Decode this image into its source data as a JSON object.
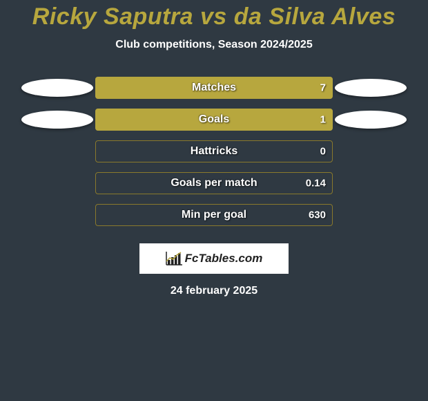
{
  "title": "Ricky Saputra vs da Silva Alves",
  "subtitle": "Club competitions, Season 2024/2025",
  "rows": [
    {
      "label": "Matches",
      "value": "7",
      "fill_pct": 100,
      "left_ellipse": true,
      "right_ellipse": true
    },
    {
      "label": "Goals",
      "value": "1",
      "fill_pct": 100,
      "left_ellipse": true,
      "right_ellipse": true
    },
    {
      "label": "Hattricks",
      "value": "0",
      "fill_pct": 0,
      "left_ellipse": false,
      "right_ellipse": false
    },
    {
      "label": "Goals per match",
      "value": "0.14",
      "fill_pct": 0,
      "left_ellipse": false,
      "right_ellipse": false
    },
    {
      "label": "Min per goal",
      "value": "630",
      "fill_pct": 0,
      "left_ellipse": false,
      "right_ellipse": false
    }
  ],
  "branding": {
    "text": "FcTables.com"
  },
  "date": "24 february 2025",
  "colors": {
    "background": "#2f3942",
    "title": "#b7a73e",
    "bar_fill": "#b7a73e",
    "bar_border": "#8a7a2c",
    "text": "#ffffff",
    "ellipse": "#ffffff"
  }
}
